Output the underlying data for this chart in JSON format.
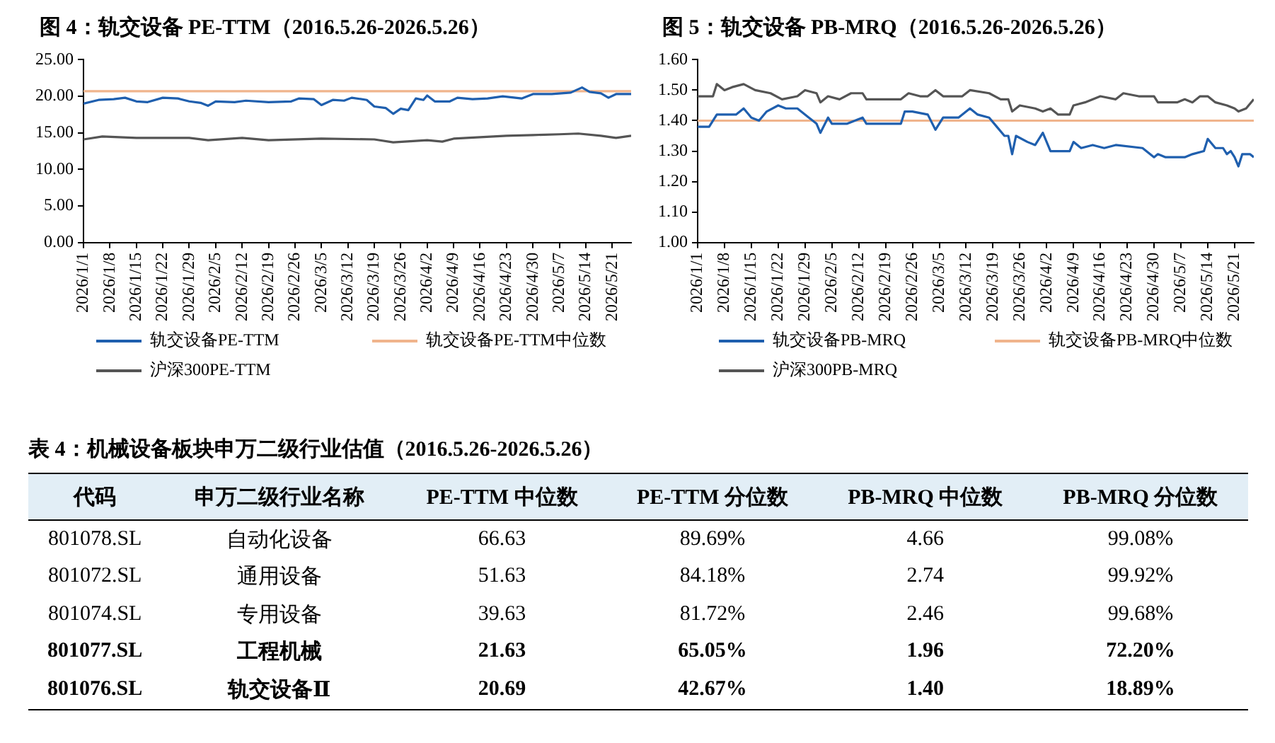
{
  "chart_data": [
    {
      "type": "line",
      "title": "图 4：轨交设备 PE-TTM（2016.5.26-2026.5.26）",
      "marker": "none",
      "line_style": "solid",
      "legend": "bottom",
      "xlim": [
        "2026-01-01",
        "2026-05-26"
      ],
      "xticks": [
        {
          "value": "2026-01-01",
          "label": "2026/1/1"
        },
        {
          "value": "2026-01-08",
          "label": "2026/1/8"
        },
        {
          "value": "2026-01-15",
          "label": "2026/1/15"
        },
        {
          "value": "2026-01-22",
          "label": "2026/1/22"
        },
        {
          "value": "2026-01-29",
          "label": "2026/1/29"
        },
        {
          "value": "2026-02-05",
          "label": "2026/2/5"
        },
        {
          "value": "2026-02-12",
          "label": "2026/2/12"
        },
        {
          "value": "2026-02-19",
          "label": "2026/2/19"
        },
        {
          "value": "2026-02-26",
          "label": "2026/2/26"
        },
        {
          "value": "2026-03-05",
          "label": "2026/3/5"
        },
        {
          "value": "2026-03-12",
          "label": "2026/3/12"
        },
        {
          "value": "2026-03-19",
          "label": "2026/3/19"
        },
        {
          "value": "2026-03-26",
          "label": "2026/3/26"
        },
        {
          "value": "2026-04-02",
          "label": "2026/4/2"
        },
        {
          "value": "2026-04-09",
          "label": "2026/4/9"
        },
        {
          "value": "2026-04-16",
          "label": "2026/4/16"
        },
        {
          "value": "2026-04-23",
          "label": "2026/4/23"
        },
        {
          "value": "2026-04-30",
          "label": "2026/4/30"
        },
        {
          "value": "2026-05-07",
          "label": "2026/5/7"
        },
        {
          "value": "2026-05-14",
          "label": "2026/5/14"
        },
        {
          "value": "2026-05-21",
          "label": "2026/5/21"
        }
      ],
      "ylim": [
        0,
        25
      ],
      "yticks": [
        {
          "value": 0,
          "label": "0.00"
        },
        {
          "value": 5,
          "label": "5.00"
        },
        {
          "value": 10,
          "label": "10.00"
        },
        {
          "value": 15,
          "label": "15.00"
        },
        {
          "value": 20,
          "label": "20.00"
        },
        {
          "value": 25,
          "label": "25.00"
        }
      ],
      "ref_lines": [
        {
          "axis": "y",
          "value": 20.69,
          "label": "轨交设备PE-TTM中位数",
          "color": "#f0b48c"
        }
      ],
      "series": [
        {
          "name": "轨交设备PE-TTM",
          "color": "#1f5fae",
          "x": [
            "2026-01-01",
            "2026-01-05",
            "2026-01-09",
            "2026-01-12",
            "2026-01-15",
            "2026-01-18",
            "2026-01-22",
            "2026-01-26",
            "2026-01-29",
            "2026-02-01",
            "2026-02-03",
            "2026-02-05",
            "2026-02-10",
            "2026-02-13",
            "2026-02-19",
            "2026-02-25",
            "2026-02-27",
            "2026-03-03",
            "2026-03-05",
            "2026-03-08",
            "2026-03-11",
            "2026-03-13",
            "2026-03-17",
            "2026-03-19",
            "2026-03-22",
            "2026-03-24",
            "2026-03-26",
            "2026-03-28",
            "2026-03-30",
            "2026-04-01",
            "2026-04-02",
            "2026-04-04",
            "2026-04-08",
            "2026-04-10",
            "2026-04-14",
            "2026-04-18",
            "2026-04-22",
            "2026-04-27",
            "2026-04-30",
            "2026-05-05",
            "2026-05-10",
            "2026-05-13",
            "2026-05-15",
            "2026-05-18",
            "2026-05-20",
            "2026-05-22",
            "2026-05-26"
          ],
          "values": [
            19.0,
            19.5,
            19.6,
            19.8,
            19.3,
            19.2,
            19.8,
            19.7,
            19.3,
            19.1,
            18.7,
            19.3,
            19.2,
            19.4,
            19.2,
            19.3,
            19.7,
            19.6,
            18.8,
            19.5,
            19.4,
            19.8,
            19.5,
            18.6,
            18.4,
            17.6,
            18.3,
            18.1,
            19.7,
            19.5,
            20.1,
            19.3,
            19.3,
            19.8,
            19.6,
            19.7,
            20.0,
            19.7,
            20.3,
            20.3,
            20.5,
            21.2,
            20.6,
            20.4,
            19.8,
            20.3,
            20.3
          ]
        },
        {
          "name": "沪深300PE-TTM",
          "color": "#555555",
          "x": [
            "2026-01-01",
            "2026-01-06",
            "2026-01-15",
            "2026-01-29",
            "2026-02-03",
            "2026-02-12",
            "2026-02-19",
            "2026-03-05",
            "2026-03-19",
            "2026-03-24",
            "2026-04-02",
            "2026-04-06",
            "2026-04-09",
            "2026-04-16",
            "2026-04-23",
            "2026-04-30",
            "2026-05-07",
            "2026-05-12",
            "2026-05-18",
            "2026-05-22",
            "2026-05-26"
          ],
          "values": [
            14.1,
            14.5,
            14.3,
            14.3,
            14.0,
            14.3,
            14.0,
            14.2,
            14.1,
            13.7,
            14.0,
            13.8,
            14.2,
            14.4,
            14.6,
            14.7,
            14.8,
            14.9,
            14.6,
            14.3,
            14.6
          ]
        }
      ]
    },
    {
      "type": "line",
      "title": "图 5：轨交设备 PB-MRQ（2016.5.26-2026.5.26）",
      "marker": "none",
      "line_style": "solid",
      "legend": "bottom",
      "xlim": [
        "2026-01-01",
        "2026-05-26"
      ],
      "xticks": [
        {
          "value": "2026-01-01",
          "label": "2026/1/1"
        },
        {
          "value": "2026-01-08",
          "label": "2026/1/8"
        },
        {
          "value": "2026-01-15",
          "label": "2026/1/15"
        },
        {
          "value": "2026-01-22",
          "label": "2026/1/22"
        },
        {
          "value": "2026-01-29",
          "label": "2026/1/29"
        },
        {
          "value": "2026-02-05",
          "label": "2026/2/5"
        },
        {
          "value": "2026-02-12",
          "label": "2026/2/12"
        },
        {
          "value": "2026-02-19",
          "label": "2026/2/19"
        },
        {
          "value": "2026-02-26",
          "label": "2026/2/26"
        },
        {
          "value": "2026-03-05",
          "label": "2026/3/5"
        },
        {
          "value": "2026-03-12",
          "label": "2026/3/12"
        },
        {
          "value": "2026-03-19",
          "label": "2026/3/19"
        },
        {
          "value": "2026-03-26",
          "label": "2026/3/26"
        },
        {
          "value": "2026-04-02",
          "label": "2026/4/2"
        },
        {
          "value": "2026-04-09",
          "label": "2026/4/9"
        },
        {
          "value": "2026-04-16",
          "label": "2026/4/16"
        },
        {
          "value": "2026-04-23",
          "label": "2026/4/23"
        },
        {
          "value": "2026-04-30",
          "label": "2026/4/30"
        },
        {
          "value": "2026-05-07",
          "label": "2026/5/7"
        },
        {
          "value": "2026-05-14",
          "label": "2026/5/14"
        },
        {
          "value": "2026-05-21",
          "label": "2026/5/21"
        }
      ],
      "ylim": [
        1,
        1.6
      ],
      "yticks": [
        {
          "value": 1,
          "label": "1.00"
        },
        {
          "value": 1.1,
          "label": "1.10"
        },
        {
          "value": 1.2,
          "label": "1.20"
        },
        {
          "value": 1.3,
          "label": "1.30"
        },
        {
          "value": 1.4,
          "label": "1.40"
        },
        {
          "value": 1.5,
          "label": "1.50"
        },
        {
          "value": 1.6,
          "label": "1.60"
        }
      ],
      "ref_lines": [
        {
          "axis": "y",
          "value": 1.4,
          "label": "轨交设备PB-MRQ中位数",
          "color": "#f0b48c"
        }
      ],
      "series": [
        {
          "name": "轨交设备PB-MRQ",
          "color": "#1f5fae",
          "x": [
            "2026-01-01",
            "2026-01-04",
            "2026-01-06",
            "2026-01-08",
            "2026-01-11",
            "2026-01-13",
            "2026-01-15",
            "2026-01-17",
            "2026-01-19",
            "2026-01-22",
            "2026-01-24",
            "2026-01-27",
            "2026-01-30",
            "2026-02-01",
            "2026-02-02",
            "2026-02-04",
            "2026-02-05",
            "2026-02-09",
            "2026-02-11",
            "2026-02-13",
            "2026-02-14",
            "2026-02-23",
            "2026-02-24",
            "2026-02-26",
            "2026-03-02",
            "2026-03-04",
            "2026-03-06",
            "2026-03-10",
            "2026-03-13",
            "2026-03-15",
            "2026-03-18",
            "2026-03-20",
            "2026-03-22",
            "2026-03-23",
            "2026-03-24",
            "2026-03-25",
            "2026-03-28",
            "2026-03-30",
            "2026-04-01",
            "2026-04-03",
            "2026-04-08",
            "2026-04-09",
            "2026-04-11",
            "2026-04-14",
            "2026-04-17",
            "2026-04-20",
            "2026-04-27",
            "2026-04-30",
            "2026-05-01",
            "2026-05-03",
            "2026-05-08",
            "2026-05-10",
            "2026-05-13",
            "2026-05-14",
            "2026-05-16",
            "2026-05-18",
            "2026-05-19",
            "2026-05-20",
            "2026-05-21",
            "2026-05-22",
            "2026-05-23",
            "2026-05-25",
            "2026-05-26"
          ],
          "values": [
            1.38,
            1.38,
            1.42,
            1.42,
            1.42,
            1.44,
            1.41,
            1.4,
            1.43,
            1.45,
            1.44,
            1.44,
            1.41,
            1.39,
            1.36,
            1.41,
            1.39,
            1.39,
            1.4,
            1.41,
            1.39,
            1.39,
            1.43,
            1.43,
            1.42,
            1.37,
            1.41,
            1.41,
            1.44,
            1.42,
            1.41,
            1.38,
            1.35,
            1.35,
            1.29,
            1.35,
            1.33,
            1.32,
            1.36,
            1.3,
            1.3,
            1.33,
            1.31,
            1.32,
            1.31,
            1.32,
            1.31,
            1.28,
            1.29,
            1.28,
            1.28,
            1.29,
            1.3,
            1.34,
            1.31,
            1.31,
            1.29,
            1.3,
            1.28,
            1.25,
            1.29,
            1.29,
            1.28
          ]
        },
        {
          "name": "沪深300PB-MRQ",
          "color": "#555555",
          "x": [
            "2026-01-01",
            "2026-01-05",
            "2026-01-06",
            "2026-01-08",
            "2026-01-10",
            "2026-01-13",
            "2026-01-16",
            "2026-01-20",
            "2026-01-23",
            "2026-01-27",
            "2026-01-29",
            "2026-02-01",
            "2026-02-02",
            "2026-02-04",
            "2026-02-07",
            "2026-02-10",
            "2026-02-13",
            "2026-02-14",
            "2026-02-23",
            "2026-02-25",
            "2026-02-28",
            "2026-03-02",
            "2026-03-04",
            "2026-03-06",
            "2026-03-11",
            "2026-03-13",
            "2026-03-18",
            "2026-03-21",
            "2026-03-23",
            "2026-03-24",
            "2026-03-26",
            "2026-03-30",
            "2026-04-01",
            "2026-04-03",
            "2026-04-05",
            "2026-04-08",
            "2026-04-09",
            "2026-04-12",
            "2026-04-16",
            "2026-04-20",
            "2026-04-22",
            "2026-04-26",
            "2026-04-30",
            "2026-05-01",
            "2026-05-06",
            "2026-05-08",
            "2026-05-10",
            "2026-05-12",
            "2026-05-14",
            "2026-05-16",
            "2026-05-19",
            "2026-05-21",
            "2026-05-22",
            "2026-05-24",
            "2026-05-26"
          ],
          "values": [
            1.48,
            1.48,
            1.52,
            1.5,
            1.51,
            1.52,
            1.5,
            1.49,
            1.47,
            1.48,
            1.5,
            1.49,
            1.46,
            1.48,
            1.47,
            1.49,
            1.49,
            1.47,
            1.47,
            1.49,
            1.48,
            1.48,
            1.5,
            1.48,
            1.48,
            1.5,
            1.49,
            1.47,
            1.47,
            1.43,
            1.45,
            1.44,
            1.43,
            1.44,
            1.42,
            1.42,
            1.45,
            1.46,
            1.48,
            1.47,
            1.49,
            1.48,
            1.48,
            1.46,
            1.46,
            1.47,
            1.46,
            1.48,
            1.48,
            1.46,
            1.45,
            1.44,
            1.43,
            1.44,
            1.47
          ]
        }
      ]
    },
    {
      "type": "other",
      "title": "表 4：机械设备板块申万二级行业估值（2016.5.26-2026.5.26）",
      "categories": [
        "代码",
        "申万二级行业名称",
        "PE-TTM 中位数",
        "PE-TTM 分位数",
        "PB-MRQ 中位数",
        "PB-MRQ 分位数"
      ],
      "annotations": [
        "801078.SL",
        "自动化设备",
        "66.63",
        "89.69%",
        "4.66",
        "99.08%",
        "801072.SL",
        "通用设备",
        "51.63",
        "84.18%",
        "2.74",
        "99.92%",
        "801074.SL",
        "专用设备",
        "39.63",
        "81.72%",
        "2.46",
        "99.68%",
        "801077.SL",
        "工程机械",
        "21.63",
        "65.05%",
        "1.96",
        "72.20%",
        "801076.SL",
        "轨交设备Ⅱ",
        "20.69",
        "42.67%",
        "1.40",
        "18.89%"
      ]
    }
  ]
}
